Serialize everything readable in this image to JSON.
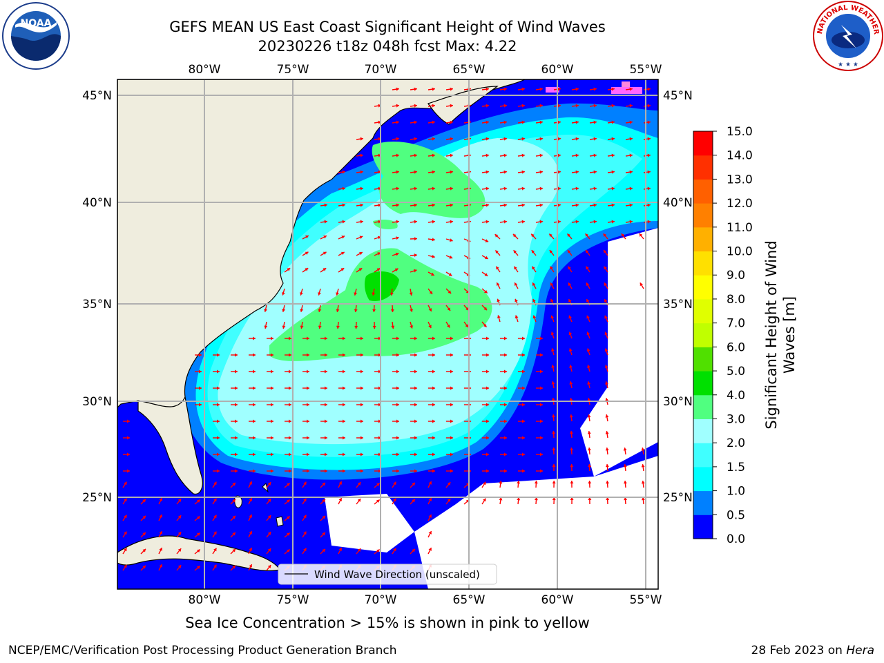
{
  "title": {
    "line1": "GEFS MEAN US East Coast Significant Height of Wind Waves",
    "line2": "20230226 t18z 048h fcst   Max: 4.22"
  },
  "map": {
    "lon_ticks": [
      "80°W",
      "75°W",
      "70°W",
      "65°W",
      "60°W",
      "55°W"
    ],
    "lat_ticks": [
      "45°N",
      "40°N",
      "35°N",
      "30°N",
      "25°N"
    ],
    "legend_label": "Wind Wave Direction (unscaled)",
    "arrow_color": "#ff0000",
    "land_color": "#efedde"
  },
  "colorbar": {
    "label_line1": "Significant Height of Wind",
    "label_line2": "Waves [m]",
    "ticks": [
      "0.0",
      "0.5",
      "1.0",
      "1.5",
      "2.0",
      "3.0",
      "4.0",
      "5.0",
      "6.0",
      "7.0",
      "8.0",
      "9.0",
      "10.0",
      "11.0",
      "12.0",
      "13.0",
      "14.0",
      "15.0"
    ],
    "colors": [
      "#0000ff",
      "#0080ff",
      "#00ffff",
      "#40ffff",
      "#a0ffff",
      "#50ff80",
      "#00e000",
      "#50e000",
      "#c0ff00",
      "#e0ff00",
      "#ffff00",
      "#ffe000",
      "#ffb000",
      "#ff8000",
      "#ff6000",
      "#ff3000",
      "#ff0000"
    ]
  },
  "footer": {
    "sea_ice_note": "Sea Ice Concentration > 15% is shown in pink to yellow",
    "left": "NCEP/EMC/Verification Post Processing Product Generation Branch",
    "right_date": "28 Feb 2023 on ",
    "right_host": "Hera"
  },
  "logos": {
    "noaa_text": "NOAA",
    "nws_text": "NATIONAL WEATHER SERVICE"
  }
}
